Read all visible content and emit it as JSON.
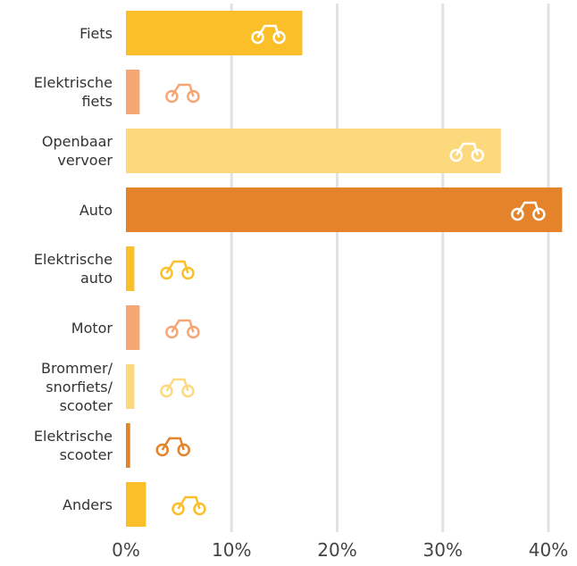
{
  "chart_data": {
    "type": "barh",
    "categories": [
      "Fiets",
      "Elektrische fiets",
      "Openbaar vervoer",
      "Auto",
      "Elektrische auto",
      "Motor",
      "Brommer/ snorfiets/ scooter",
      "Elektrische scooter",
      "Anders"
    ],
    "values": [
      16.7,
      1.3,
      35.5,
      41.3,
      0.8,
      1.3,
      0.8,
      0.4,
      1.9
    ],
    "colors": [
      "#fbbf2a",
      "#f5a673",
      "#fdd97d",
      "#e5832a",
      "#fbbf2a",
      "#f5a673",
      "#fdd97d",
      "#e5832a",
      "#fbbf2a"
    ],
    "xlim": [
      0,
      42.4
    ],
    "xticks": [
      {
        "value": 0,
        "label": "0%"
      },
      {
        "value": 10,
        "label": "10%"
      },
      {
        "value": 20,
        "label": "20%"
      },
      {
        "value": 30,
        "label": "30%"
      },
      {
        "value": 40,
        "label": "40%"
      }
    ],
    "grid": true
  }
}
